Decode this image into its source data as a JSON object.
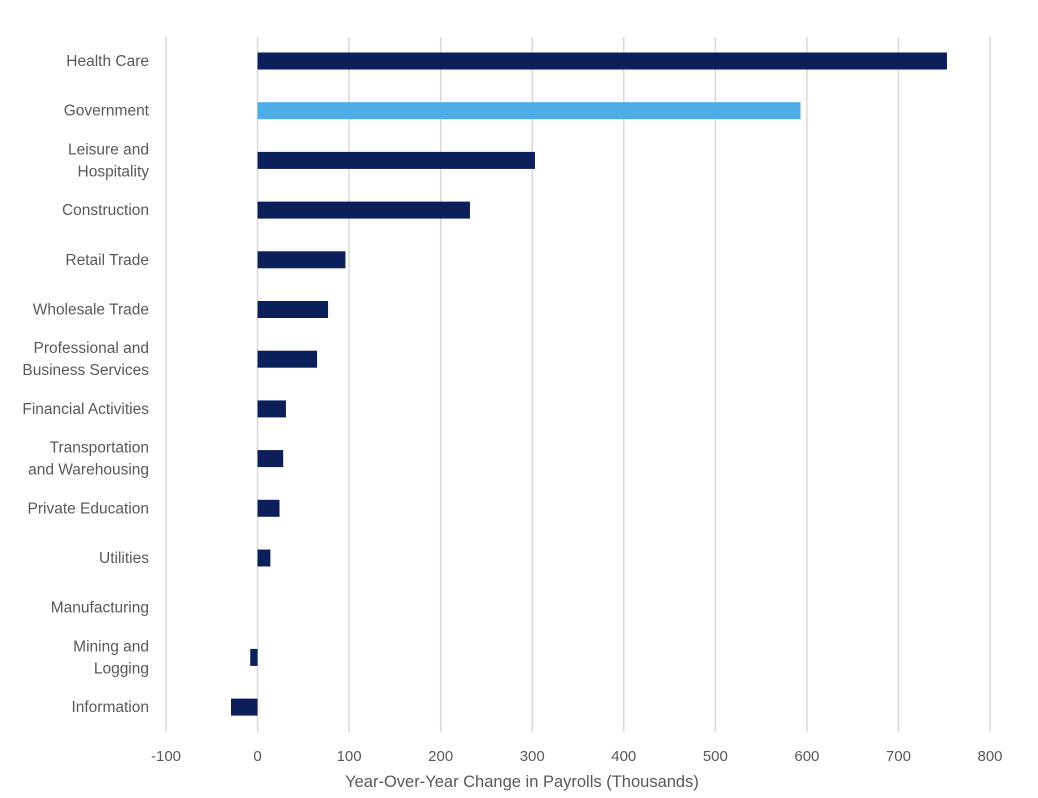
{
  "chart_data": {
    "type": "bar",
    "orientation": "horizontal",
    "categories": [
      [
        "Health Care"
      ],
      [
        "Government"
      ],
      [
        "Leisure and",
        "Hospitality"
      ],
      [
        "Construction"
      ],
      [
        "Retail Trade"
      ],
      [
        "Wholesale Trade"
      ],
      [
        "Professional and",
        "Business Services"
      ],
      [
        "Financial Activities"
      ],
      [
        "Transportation",
        "and Warehousing"
      ],
      [
        "Private Education"
      ],
      [
        "Utilities"
      ],
      [
        "Manufacturing"
      ],
      [
        "Mining and",
        "Logging"
      ],
      [
        "Information"
      ]
    ],
    "values": [
      753,
      593,
      303,
      232,
      96,
      77,
      65,
      31,
      28,
      24,
      14,
      0,
      -8,
      -29
    ],
    "highlight_index": 1,
    "xlabel": "Year-Over-Year  Change in Payrolls (Thousands)",
    "ylabel": "",
    "title": "",
    "xlim": [
      -100,
      800
    ],
    "xticks": [
      -100,
      0,
      100,
      200,
      300,
      400,
      500,
      600,
      700,
      800
    ],
    "grid": "vertical",
    "legend": "none",
    "colors": {
      "bar": "#0c1f5b",
      "highlight": "#4eace6",
      "grid": "#d9d9d9",
      "text": "#595959"
    }
  }
}
